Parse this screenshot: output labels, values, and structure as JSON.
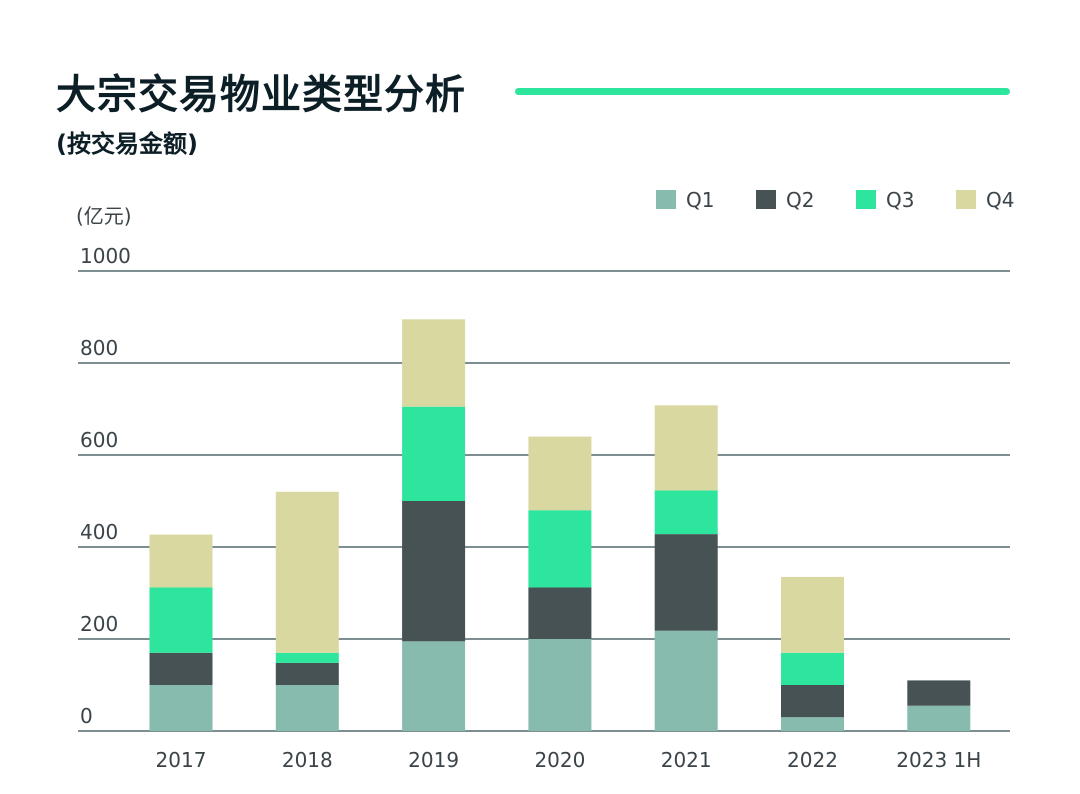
{
  "header": {
    "title": "大宗交易物业类型分析",
    "subtitle": "(按交易金额)"
  },
  "chart_data": {
    "type": "bar",
    "stacked": true,
    "unit_label": "(亿元)",
    "categories": [
      "2017",
      "2018",
      "2019",
      "2020",
      "2021",
      "2022",
      "2023 1H"
    ],
    "series": [
      {
        "name": "Q1",
        "color": "#86bbad",
        "values": [
          100,
          100,
          195,
          200,
          218,
          30,
          55
        ]
      },
      {
        "name": "Q2",
        "color": "#475254",
        "values": [
          70,
          48,
          305,
          112,
          210,
          70,
          55
        ]
      },
      {
        "name": "Q3",
        "color": "#2ee59d",
        "values": [
          142,
          22,
          205,
          168,
          95,
          70,
          0
        ]
      },
      {
        "name": "Q4",
        "color": "#d9d8a1",
        "values": [
          115,
          350,
          190,
          160,
          185,
          165,
          0
        ]
      }
    ],
    "ylim": [
      0,
      1000
    ],
    "yticks": [
      0,
      200,
      400,
      600,
      800,
      1000
    ],
    "grid": true,
    "legend_position": "top-right"
  }
}
